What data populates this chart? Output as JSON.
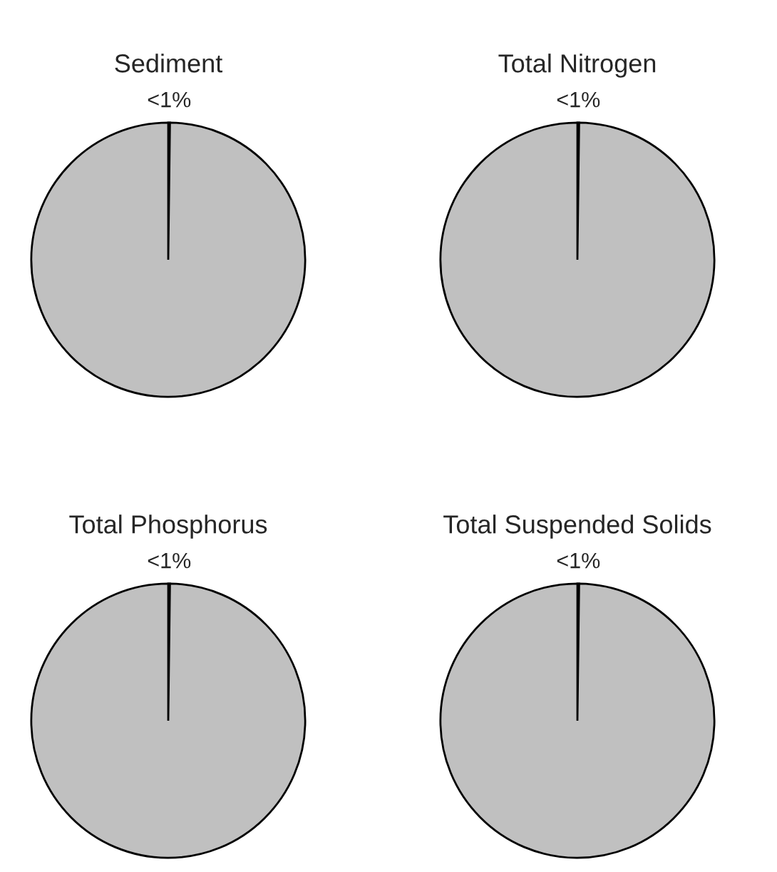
{
  "chart_data": [
    {
      "type": "pie",
      "title": "Sediment",
      "categories": [
        null,
        null
      ],
      "values": [
        0.2,
        99.8
      ],
      "colors": [
        "#c0c0c0",
        "#c0c0c0"
      ],
      "value_labels": [
        "<1%",
        null
      ]
    },
    {
      "type": "pie",
      "title": "Total Nitrogen",
      "categories": [
        null,
        null
      ],
      "values": [
        0.2,
        99.8
      ],
      "colors": [
        "#c0c0c0",
        "#c0c0c0"
      ],
      "value_labels": [
        "<1%",
        null
      ]
    },
    {
      "type": "pie",
      "title": "Total Phosphorus",
      "categories": [
        null,
        null
      ],
      "values": [
        0.2,
        99.8
      ],
      "colors": [
        "#c0c0c0",
        "#c0c0c0"
      ],
      "value_labels": [
        "<1%",
        null
      ]
    },
    {
      "type": "pie",
      "title": "Total Suspended Solids",
      "categories": [
        null,
        null
      ],
      "values": [
        0.2,
        99.8
      ],
      "colors": [
        "#c0c0c0",
        "#c0c0c0"
      ],
      "value_labels": [
        "<1%",
        null
      ]
    }
  ]
}
